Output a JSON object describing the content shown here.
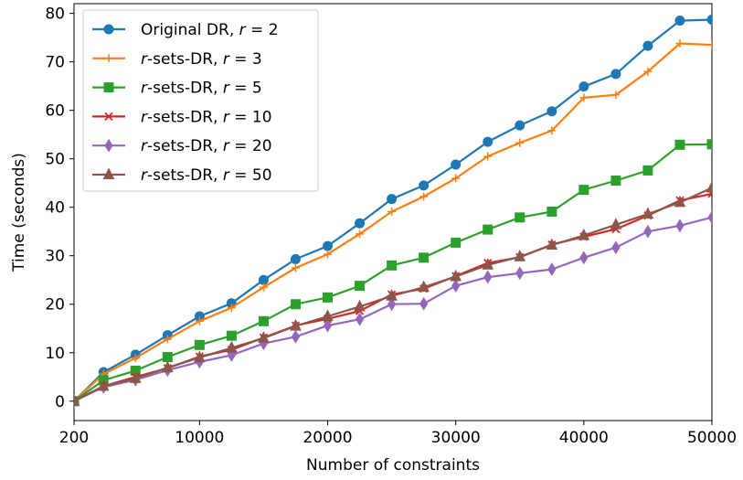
{
  "chart_data": {
    "type": "line",
    "title": "",
    "xlabel": "Number of constraints",
    "ylabel": "Time (seconds)",
    "xlim": [
      200,
      50000
    ],
    "ylim": [
      -4,
      82
    ],
    "x_ticks": [
      200,
      10000,
      20000,
      30000,
      40000,
      50000
    ],
    "x_tick_labels": [
      "200",
      "10000",
      "20000",
      "30000",
      "40000",
      "50000"
    ],
    "y_ticks": [
      0,
      10,
      20,
      30,
      40,
      50,
      60,
      70,
      80
    ],
    "y_tick_labels": [
      "0",
      "10",
      "20",
      "30",
      "40",
      "50",
      "60",
      "70",
      "80"
    ],
    "grid": false,
    "legend_position": "top-left",
    "x": [
      200,
      2500,
      5000,
      7500,
      10000,
      12500,
      15000,
      17500,
      20000,
      22500,
      25000,
      27500,
      30000,
      32500,
      35000,
      37500,
      40000,
      42500,
      45000,
      47500,
      50000
    ],
    "series": [
      {
        "name_prefix": "Original DR, ",
        "name_var": "r",
        "name_value": " = 2",
        "color": "#1f77b4",
        "marker": "circle",
        "values": [
          0,
          6,
          9.6,
          13.6,
          17.5,
          20.2,
          25,
          29.3,
          32,
          36.7,
          41.7,
          44.5,
          48.8,
          53.5,
          56.9,
          59.8,
          64.9,
          67.5,
          73.3,
          78.5,
          78.7
        ]
      },
      {
        "name_prefix": "",
        "name_var": "r",
        "name_value": "-sets-DR, r = 3",
        "color": "#ff7f0e",
        "marker": "plus",
        "values": [
          0,
          5.6,
          8.9,
          12.8,
          16.5,
          19.3,
          23.5,
          27.5,
          30.3,
          34.5,
          39.1,
          42.2,
          46,
          50.5,
          53.3,
          55.8,
          62.6,
          63.2,
          68,
          73.8,
          73.5
        ]
      },
      {
        "name_prefix": "",
        "name_var": "r",
        "name_value": "-sets-DR, r = 5",
        "color": "#2ca02c",
        "marker": "square",
        "values": [
          0,
          4.3,
          6.3,
          9.1,
          11.6,
          13.5,
          16.5,
          20,
          21.4,
          23.8,
          28,
          29.6,
          32.7,
          35.4,
          37.9,
          39.1,
          43.6,
          45.5,
          47.6,
          52.9,
          53
        ]
      },
      {
        "name_prefix": "",
        "name_var": "r",
        "name_value": "-sets-DR, r = 10",
        "color": "#d62728",
        "marker": "x",
        "values": [
          0,
          3.1,
          5,
          6.8,
          9.2,
          10.6,
          13.1,
          15.6,
          17,
          18.6,
          22,
          23.2,
          25.8,
          28.5,
          29.7,
          32.3,
          33.9,
          35.5,
          38.3,
          41.4,
          42.8
        ]
      },
      {
        "name_prefix": "",
        "name_var": "r",
        "name_value": "-sets-DR, r = 20",
        "color": "#9467bd",
        "marker": "diamond",
        "values": [
          0,
          2.9,
          4.4,
          6.4,
          8.1,
          9.5,
          11.9,
          13.3,
          15.6,
          16.9,
          20,
          20.1,
          23.8,
          25.6,
          26.4,
          27.2,
          29.6,
          31.7,
          35,
          36.2,
          37.9
        ]
      },
      {
        "name_prefix": "",
        "name_var": "r",
        "name_value": "-sets-DR, r = 50",
        "color": "#8c564b",
        "marker": "triangle",
        "values": [
          0,
          3.1,
          4.7,
          6.9,
          9,
          11,
          13,
          15.5,
          17.5,
          19.5,
          21.7,
          23.5,
          25.7,
          28.1,
          29.8,
          32.2,
          34.2,
          36.4,
          38.6,
          41,
          44
        ]
      }
    ]
  }
}
